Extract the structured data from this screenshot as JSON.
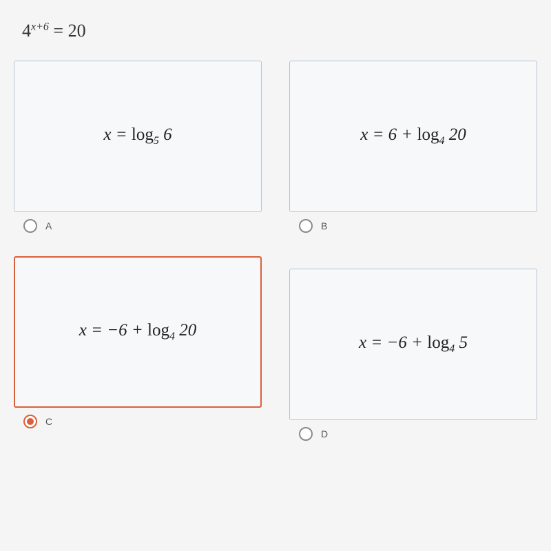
{
  "question": {
    "base": "4",
    "exponent_var": "x",
    "exponent_op": "+6",
    "relation": "= 20"
  },
  "options": [
    {
      "letter": "A",
      "selected": false,
      "shifted": false,
      "expr": {
        "prefix": "x = ",
        "func": "log",
        "sub": "5",
        "after": " 6"
      }
    },
    {
      "letter": "B",
      "selected": false,
      "shifted": false,
      "expr": {
        "prefix": "x = 6 + ",
        "func": "log",
        "sub": "4",
        "after": " 20"
      }
    },
    {
      "letter": "C",
      "selected": true,
      "shifted": false,
      "expr": {
        "prefix": "x = −6 + ",
        "func": "log",
        "sub": "4",
        "after": " 20"
      }
    },
    {
      "letter": "D",
      "selected": false,
      "shifted": true,
      "expr": {
        "prefix": "x = −6 + ",
        "func": "log",
        "sub": "4",
        "after": " 5"
      }
    }
  ],
  "style": {
    "selected_border_color": "#d9603a",
    "box_border_color": "#b8c4d0",
    "bg_color": "#f5f5f5",
    "text_color": "#222",
    "header_fontsize": 26,
    "answer_fontsize": 25,
    "letter_fontsize": 14
  }
}
